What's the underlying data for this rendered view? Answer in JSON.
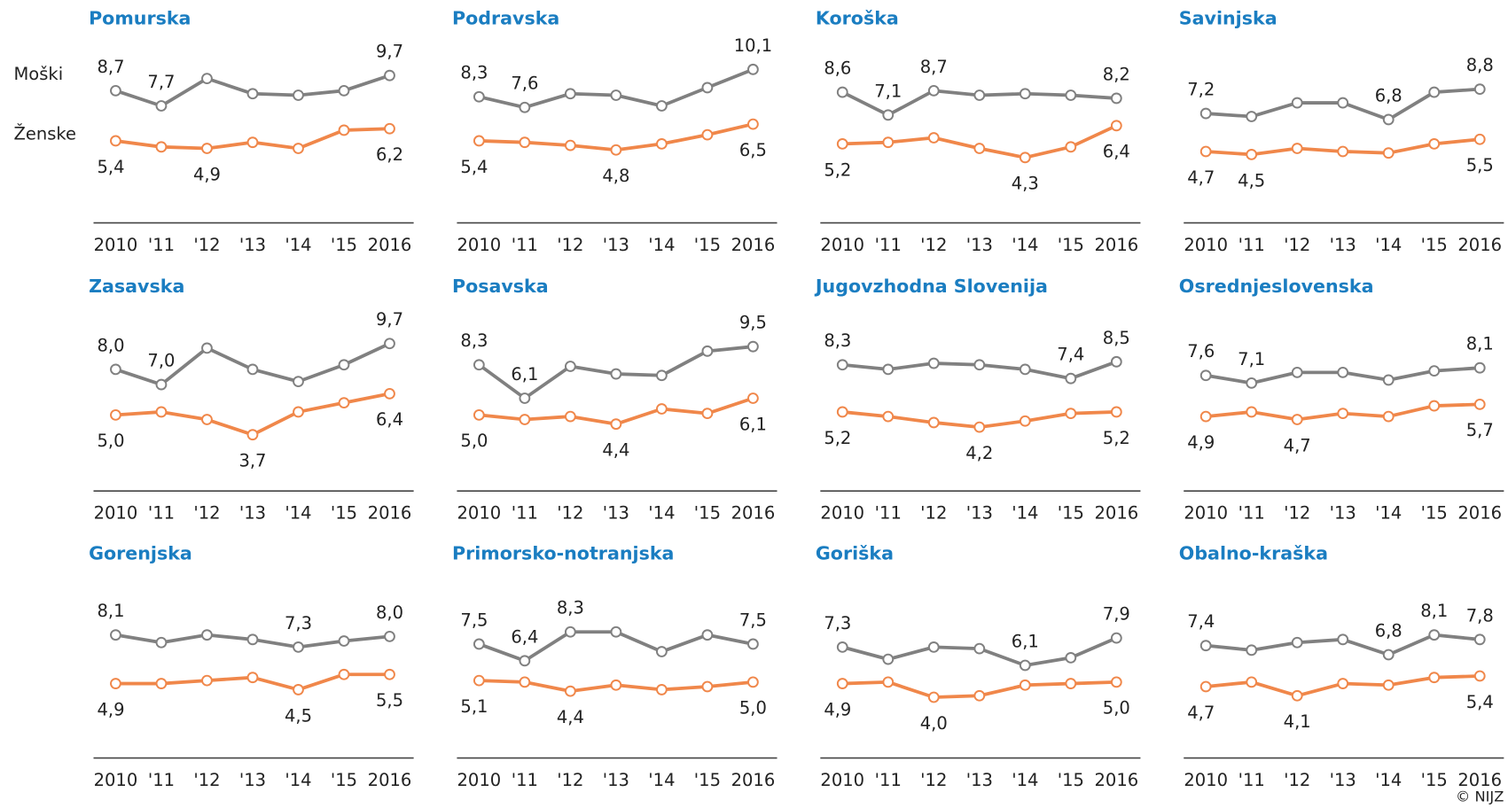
{
  "chart_data": [
    {
      "type": "line",
      "title": "Pomurska",
      "categories": [
        "2010",
        "'11",
        "'12",
        "'13",
        "'14",
        "'15",
        "2016"
      ],
      "ylim": [
        0,
        11
      ],
      "series": [
        {
          "name": "Moški",
          "color": "#808080",
          "values": [
            8.7,
            7.7,
            9.5,
            8.5,
            8.4,
            8.7,
            9.7
          ],
          "value_labels": [
            "8,7",
            "7,7",
            null,
            null,
            null,
            null,
            "9,7"
          ]
        },
        {
          "name": "Ženske",
          "color": "#f0874a",
          "values": [
            5.4,
            5.0,
            4.9,
            5.3,
            4.9,
            6.1,
            6.2
          ],
          "value_labels": [
            "5,4",
            null,
            "4,9",
            null,
            null,
            null,
            "6,2"
          ]
        }
      ]
    },
    {
      "type": "line",
      "title": "Podravska",
      "categories": [
        "2010",
        "'11",
        "'12",
        "'13",
        "'14",
        "'15",
        "2016"
      ],
      "ylim": [
        0,
        11
      ],
      "series": [
        {
          "color": "#808080",
          "values": [
            8.3,
            7.6,
            8.5,
            8.4,
            7.7,
            8.9,
            10.1
          ],
          "value_labels": [
            "8,3",
            "7,6",
            null,
            null,
            null,
            null,
            "10,1"
          ]
        },
        {
          "color": "#f0874a",
          "values": [
            5.4,
            5.3,
            5.1,
            4.8,
            5.2,
            5.8,
            6.5
          ],
          "value_labels": [
            "5,4",
            null,
            null,
            "4,8",
            null,
            null,
            "6,5"
          ]
        }
      ]
    },
    {
      "type": "line",
      "title": "Koroška",
      "categories": [
        "2010",
        "'11",
        "'12",
        "'13",
        "'14",
        "'15",
        "2016"
      ],
      "ylim": [
        0,
        11
      ],
      "series": [
        {
          "color": "#808080",
          "values": [
            8.6,
            7.1,
            8.7,
            8.4,
            8.5,
            8.4,
            8.2
          ],
          "value_labels": [
            "8,6",
            "7,1",
            "8,7",
            null,
            null,
            null,
            "8,2"
          ]
        },
        {
          "color": "#f0874a",
          "values": [
            5.2,
            5.3,
            5.6,
            4.9,
            4.3,
            5.0,
            6.4
          ],
          "value_labels": [
            "5,2",
            null,
            null,
            null,
            "4,3",
            null,
            "6,4"
          ]
        }
      ]
    },
    {
      "type": "line",
      "title": "Savinjska",
      "categories": [
        "2010",
        "'11",
        "'12",
        "'13",
        "'14",
        "'15",
        "2016"
      ],
      "ylim": [
        0,
        11
      ],
      "series": [
        {
          "color": "#808080",
          "values": [
            7.2,
            7.0,
            7.9,
            7.9,
            6.8,
            8.6,
            8.8
          ],
          "value_labels": [
            "7,2",
            null,
            null,
            null,
            "6,8",
            null,
            "8,8"
          ]
        },
        {
          "color": "#f0874a",
          "values": [
            4.7,
            4.5,
            4.9,
            4.7,
            4.6,
            5.2,
            5.5
          ],
          "value_labels": [
            "4,7",
            "4,5",
            null,
            null,
            null,
            null,
            "5,5"
          ]
        }
      ]
    },
    {
      "type": "line",
      "title": "Zasavska",
      "categories": [
        "2010",
        "'11",
        "'12",
        "'13",
        "'14",
        "'15",
        "2016"
      ],
      "ylim": [
        0,
        11
      ],
      "series": [
        {
          "color": "#808080",
          "values": [
            8.0,
            7.0,
            9.4,
            8.0,
            7.2,
            8.3,
            9.7
          ],
          "value_labels": [
            "8,0",
            "7,0",
            null,
            null,
            null,
            null,
            "9,7"
          ]
        },
        {
          "color": "#f0874a",
          "values": [
            5.0,
            5.2,
            4.7,
            3.7,
            5.2,
            5.8,
            6.4
          ],
          "value_labels": [
            "5,0",
            null,
            null,
            "3,7",
            null,
            null,
            "6,4"
          ]
        }
      ]
    },
    {
      "type": "line",
      "title": "Posavska",
      "categories": [
        "2010",
        "'11",
        "'12",
        "'13",
        "'14",
        "'15",
        "2016"
      ],
      "ylim": [
        0,
        11
      ],
      "series": [
        {
          "color": "#808080",
          "values": [
            8.3,
            6.1,
            8.2,
            7.7,
            7.6,
            9.2,
            9.5
          ],
          "value_labels": [
            "8,3",
            "6,1",
            null,
            null,
            null,
            null,
            "9,5"
          ]
        },
        {
          "color": "#f0874a",
          "values": [
            5.0,
            4.7,
            4.9,
            4.4,
            5.4,
            5.1,
            6.1
          ],
          "value_labels": [
            "5,0",
            null,
            null,
            "4,4",
            null,
            null,
            "6,1"
          ]
        }
      ]
    },
    {
      "type": "line",
      "title": "Jugovzhodna  Slovenija",
      "categories": [
        "2010",
        "'11",
        "'12",
        "'13",
        "'14",
        "'15",
        "2016"
      ],
      "ylim": [
        0,
        11
      ],
      "series": [
        {
          "color": "#808080",
          "values": [
            8.3,
            8.0,
            8.4,
            8.3,
            8.0,
            7.4,
            8.5
          ],
          "value_labels": [
            "8,3",
            null,
            null,
            null,
            null,
            "7,4",
            "8,5"
          ]
        },
        {
          "color": "#f0874a",
          "values": [
            5.2,
            4.9,
            4.5,
            4.2,
            4.6,
            5.1,
            5.2
          ],
          "value_labels": [
            "5,2",
            null,
            null,
            "4,2",
            null,
            null,
            "5,2"
          ]
        }
      ]
    },
    {
      "type": "line",
      "title": "Osrednjeslovenska",
      "categories": [
        "2010",
        "'11",
        "'12",
        "'13",
        "'14",
        "'15",
        "2016"
      ],
      "ylim": [
        0,
        11
      ],
      "series": [
        {
          "color": "#808080",
          "values": [
            7.6,
            7.1,
            7.8,
            7.8,
            7.3,
            7.9,
            8.1
          ],
          "value_labels": [
            "7,6",
            "7,1",
            null,
            null,
            null,
            null,
            "8,1"
          ]
        },
        {
          "color": "#f0874a",
          "values": [
            4.9,
            5.2,
            4.7,
            5.1,
            4.9,
            5.6,
            5.7
          ],
          "value_labels": [
            "4,9",
            null,
            "4,7",
            null,
            null,
            null,
            "5,7"
          ]
        }
      ]
    },
    {
      "type": "line",
      "title": "Gorenjska",
      "categories": [
        "2010",
        "'11",
        "'12",
        "'13",
        "'14",
        "'15",
        "2016"
      ],
      "ylim": [
        0,
        11
      ],
      "series": [
        {
          "color": "#808080",
          "values": [
            8.1,
            7.6,
            8.1,
            7.8,
            7.3,
            7.7,
            8.0
          ],
          "value_labels": [
            "8,1",
            null,
            null,
            null,
            "7,3",
            null,
            "8,0"
          ]
        },
        {
          "color": "#f0874a",
          "values": [
            4.9,
            4.9,
            5.1,
            5.3,
            4.5,
            5.5,
            5.5
          ],
          "value_labels": [
            "4,9",
            null,
            null,
            null,
            "4,5",
            null,
            "5,5"
          ]
        }
      ]
    },
    {
      "type": "line",
      "title": "Primorsko-notranjska",
      "categories": [
        "2010",
        "'11",
        "'12",
        "'13",
        "'14",
        "'15",
        "2016"
      ],
      "ylim": [
        0,
        11
      ],
      "series": [
        {
          "color": "#808080",
          "values": [
            7.5,
            6.4,
            8.3,
            8.3,
            7.0,
            8.1,
            7.5
          ],
          "value_labels": [
            "7,5",
            "6,4",
            "8,3",
            null,
            null,
            null,
            "7,5"
          ]
        },
        {
          "color": "#f0874a",
          "values": [
            5.1,
            5.0,
            4.4,
            4.8,
            4.5,
            4.7,
            5.0
          ],
          "value_labels": [
            "5,1",
            null,
            "4,4",
            null,
            null,
            null,
            "5,0"
          ]
        }
      ]
    },
    {
      "type": "line",
      "title": "Goriška",
      "categories": [
        "2010",
        "'11",
        "'12",
        "'13",
        "'14",
        "'15",
        "2016"
      ],
      "ylim": [
        0,
        11
      ],
      "series": [
        {
          "color": "#808080",
          "values": [
            7.3,
            6.5,
            7.3,
            7.2,
            6.1,
            6.6,
            7.9
          ],
          "value_labels": [
            "7,3",
            null,
            null,
            null,
            "6,1",
            null,
            "7,9"
          ]
        },
        {
          "color": "#f0874a",
          "values": [
            4.9,
            5.0,
            4.0,
            4.1,
            4.8,
            4.9,
            5.0
          ],
          "value_labels": [
            "4,9",
            null,
            "4,0",
            null,
            null,
            null,
            "5,0"
          ]
        }
      ]
    },
    {
      "type": "line",
      "title": "Obalno-kraška",
      "categories": [
        "2010",
        "'11",
        "'12",
        "'13",
        "'14",
        "'15",
        "2016"
      ],
      "ylim": [
        0,
        11
      ],
      "series": [
        {
          "color": "#808080",
          "values": [
            7.4,
            7.1,
            7.6,
            7.8,
            6.8,
            8.1,
            7.8
          ],
          "value_labels": [
            "7,4",
            null,
            null,
            null,
            "6,8",
            "8,1",
            "7,8"
          ]
        },
        {
          "color": "#f0874a",
          "values": [
            4.7,
            5.0,
            4.1,
            4.9,
            4.8,
            5.3,
            5.4
          ],
          "value_labels": [
            "4,7",
            null,
            "4,1",
            null,
            null,
            null,
            "5,4"
          ]
        }
      ]
    }
  ],
  "source": "© NIJZ"
}
